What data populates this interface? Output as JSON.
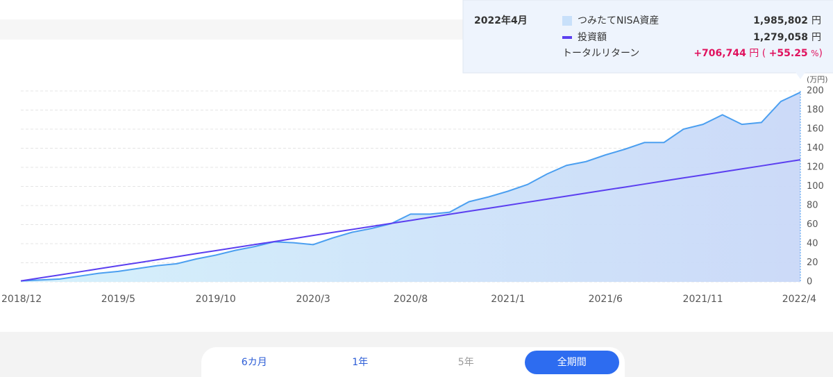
{
  "chart_data": {
    "type": "area-line",
    "unit_label": "(万円)",
    "categories": [
      "2018/12",
      null,
      null,
      null,
      null,
      "2019/5",
      null,
      null,
      null,
      null,
      "2019/10",
      null,
      null,
      null,
      null,
      "2020/3",
      null,
      null,
      null,
      null,
      "2020/8",
      null,
      null,
      null,
      null,
      "2021/1",
      null,
      null,
      null,
      null,
      "2021/6",
      null,
      null,
      null,
      null,
      "2021/11",
      null,
      null,
      null,
      null,
      "2022/4"
    ],
    "series": [
      {
        "name": "つみたてNISA資産",
        "color": "#4b9ff0",
        "fill": "#c8e0fa",
        "values": [
          1,
          2,
          3,
          6,
          9,
          11,
          14,
          17,
          19,
          24,
          28,
          33,
          37,
          42,
          41,
          39,
          46,
          52,
          56,
          61,
          71,
          71,
          73,
          84,
          89,
          95,
          102,
          113,
          122,
          126,
          133,
          139,
          146,
          146,
          160,
          165,
          175,
          165,
          167,
          189,
          198.5802
        ]
      },
      {
        "name": "投資額",
        "color": "#5b3ff0",
        "values": [
          1,
          4.2,
          7.3,
          10.5,
          13.7,
          16.9,
          20.0,
          23.2,
          26.4,
          29.6,
          32.7,
          35.9,
          39.1,
          42.2,
          45.4,
          48.6,
          51.8,
          54.9,
          58.1,
          61.3,
          64.4,
          67.6,
          70.8,
          74.0,
          77.1,
          80.3,
          83.5,
          86.6,
          89.8,
          93.0,
          96.2,
          99.3,
          102.5,
          105.7,
          108.9,
          112.0,
          115.2,
          118.4,
          121.5,
          124.7,
          127.9058
        ]
      }
    ],
    "ylim": [
      0,
      200
    ],
    "yticks": [
      0,
      20,
      40,
      60,
      80,
      100,
      120,
      140,
      160,
      180,
      200
    ],
    "grid": true
  },
  "tooltip": {
    "title": "2022年4月",
    "rows": [
      {
        "label": "つみたてNISA資産",
        "value": "1,985,802",
        "unit": "円"
      },
      {
        "label": "投資額",
        "value": "1,279,058",
        "unit": "円"
      }
    ],
    "return": {
      "label": "トータルリターン",
      "value": "+706,744",
      "unit": "円",
      "open": "(",
      "percent": "+55.25",
      "percent_unit": "%",
      "close": ")"
    }
  },
  "buttons": [
    "6カ月",
    "1年",
    "5年",
    "全期間"
  ]
}
